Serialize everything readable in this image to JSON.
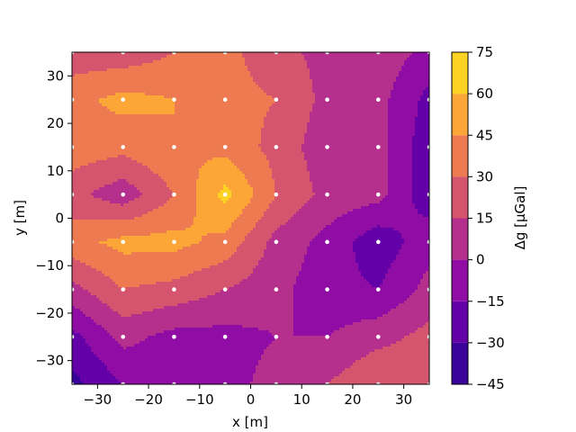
{
  "chart_data": {
    "type": "heatmap",
    "subtype": "filled-contour",
    "title": "",
    "xlabel": "x [m]",
    "ylabel": "y [m]",
    "xlim": [
      -35,
      35
    ],
    "ylim": [
      -35,
      35
    ],
    "xticks": [
      -30,
      -20,
      -10,
      0,
      10,
      20,
      30
    ],
    "yticks": [
      -30,
      -20,
      -10,
      0,
      10,
      20,
      30
    ],
    "x": [
      -35,
      -25,
      -15,
      -5,
      5,
      15,
      25,
      35
    ],
    "y": [
      -35,
      -25,
      -15,
      -5,
      5,
      15,
      25,
      35
    ],
    "z": [
      [
        -35,
        -15,
        -5,
        -5,
        5,
        15,
        30,
        20
      ],
      [
        -20,
        5,
        -5,
        -5,
        0,
        0,
        10,
        20
      ],
      [
        10,
        30,
        25,
        15,
        5,
        -10,
        -15,
        5
      ],
      [
        40,
        50,
        50,
        40,
        10,
        -5,
        -25,
        -5
      ],
      [
        20,
        5,
        30,
        65,
        30,
        10,
        5,
        -25
      ],
      [
        40,
        35,
        45,
        40,
        25,
        5,
        5,
        -25
      ],
      [
        40,
        50,
        45,
        35,
        30,
        10,
        5,
        -20
      ],
      [
        20,
        20,
        30,
        35,
        20,
        10,
        10,
        -5
      ]
    ],
    "levels": [
      -45,
      -30,
      -15,
      0,
      15,
      30,
      45,
      60,
      75
    ],
    "colorbar": {
      "label": "Δg [μGal]",
      "ticks": [
        -45,
        -30,
        -15,
        0,
        15,
        30,
        45,
        60,
        75
      ],
      "colors": [
        "#3a049a",
        "#6300a7",
        "#8f0da4",
        "#b52f8c",
        "#d5546e",
        "#ee7a51",
        "#fca637",
        "#fcd225"
      ]
    },
    "points": {
      "color": "#ffffff",
      "x": [
        -35,
        -25,
        -15,
        -5,
        5,
        15,
        25,
        35
      ],
      "y": [
        -35,
        -25,
        -15,
        -5,
        5,
        15,
        25,
        35
      ]
    },
    "grid": false,
    "colormap": "plasma"
  }
}
